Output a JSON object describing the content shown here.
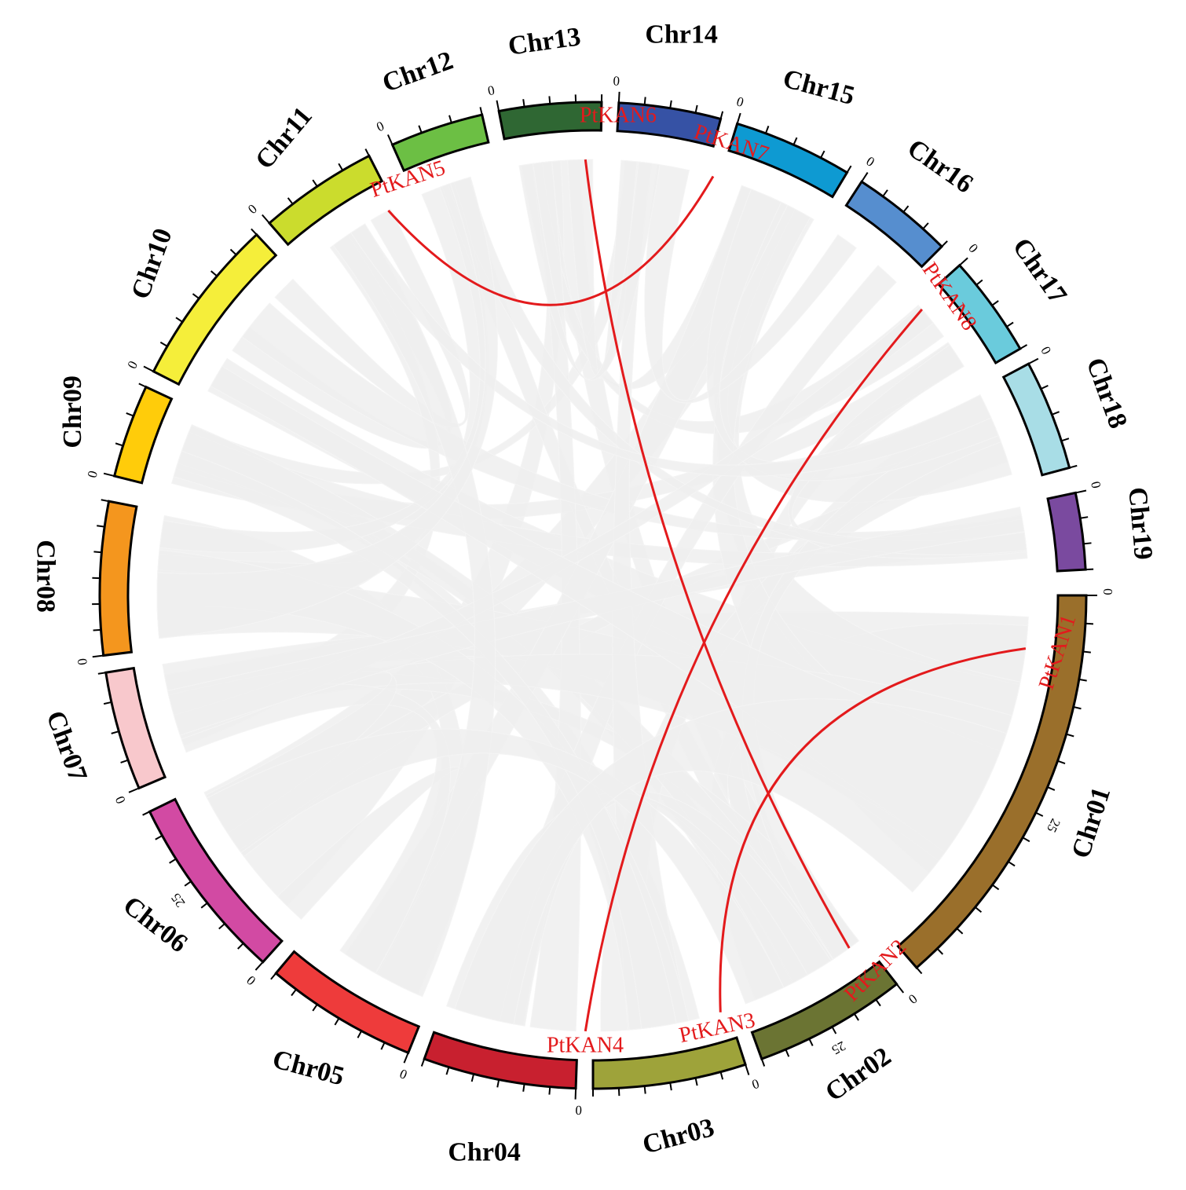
{
  "chart_data": {
    "type": "circos",
    "link_color": "#e31a1c",
    "background_link_color": "#eeeeee",
    "chromosomes": [
      {
        "name": "Chr01",
        "color": "#9a6f2b",
        "tick_labels": [
          "0",
          "25"
        ]
      },
      {
        "name": "Chr02",
        "color": "#6b7433",
        "tick_labels": [
          "0",
          "25"
        ]
      },
      {
        "name": "Chr03",
        "color": "#9ea33a",
        "tick_labels": [
          "0"
        ]
      },
      {
        "name": "Chr04",
        "color": "#c8202f",
        "tick_labels": [
          "0"
        ]
      },
      {
        "name": "Chr05",
        "color": "#ee3b3b",
        "tick_labels": [
          "0"
        ]
      },
      {
        "name": "Chr06",
        "color": "#d24aa3",
        "tick_labels": [
          "0",
          "25"
        ]
      },
      {
        "name": "Chr07",
        "color": "#f8c8cc",
        "tick_labels": [
          "0"
        ]
      },
      {
        "name": "Chr08",
        "color": "#f4961e",
        "tick_labels": [
          "0"
        ]
      },
      {
        "name": "Chr09",
        "color": "#ffcc0a",
        "tick_labels": [
          "0"
        ]
      },
      {
        "name": "Chr10",
        "color": "#f5ee3a",
        "tick_labels": [
          "0"
        ]
      },
      {
        "name": "Chr11",
        "color": "#cbdc2d",
        "tick_labels": [
          "0"
        ]
      },
      {
        "name": "Chr12",
        "color": "#6cbf44",
        "tick_labels": [
          "0"
        ]
      },
      {
        "name": "Chr13",
        "color": "#2f6733",
        "tick_labels": [
          "0"
        ]
      },
      {
        "name": "Chr14",
        "color": "#3652a5",
        "tick_labels": [
          "0"
        ]
      },
      {
        "name": "Chr15",
        "color": "#0e9ad2",
        "tick_labels": [
          "0"
        ]
      },
      {
        "name": "Chr16",
        "color": "#568ecf",
        "tick_labels": [
          "0"
        ]
      },
      {
        "name": "Chr17",
        "color": "#6acbdc",
        "tick_labels": [
          "0"
        ]
      },
      {
        "name": "Chr18",
        "color": "#a8dde6",
        "tick_labels": [
          "0"
        ]
      },
      {
        "name": "Chr19",
        "color": "#7a4a9f",
        "tick_labels": [
          "0"
        ]
      }
    ],
    "genes": [
      {
        "name": "PtKAN1",
        "chromosome": "Chr01"
      },
      {
        "name": "PtKAN2",
        "chromosome": "Chr02"
      },
      {
        "name": "PtKAN3",
        "chromosome": "Chr03"
      },
      {
        "name": "PtKAN4",
        "chromosome": "Chr04"
      },
      {
        "name": "PtKAN5",
        "chromosome": "Chr12"
      },
      {
        "name": "PtKAN6",
        "chromosome": "Chr14"
      },
      {
        "name": "PtKAN7",
        "chromosome": "Chr15"
      },
      {
        "name": "PtKAN8",
        "chromosome": "Chr17"
      }
    ],
    "links": [
      {
        "from": "PtKAN1",
        "to": "PtKAN3"
      },
      {
        "from": "PtKAN2",
        "to": "PtKAN6"
      },
      {
        "from": "PtKAN4",
        "to": "PtKAN8"
      },
      {
        "from": "PtKAN5",
        "to": "PtKAN7"
      }
    ]
  }
}
